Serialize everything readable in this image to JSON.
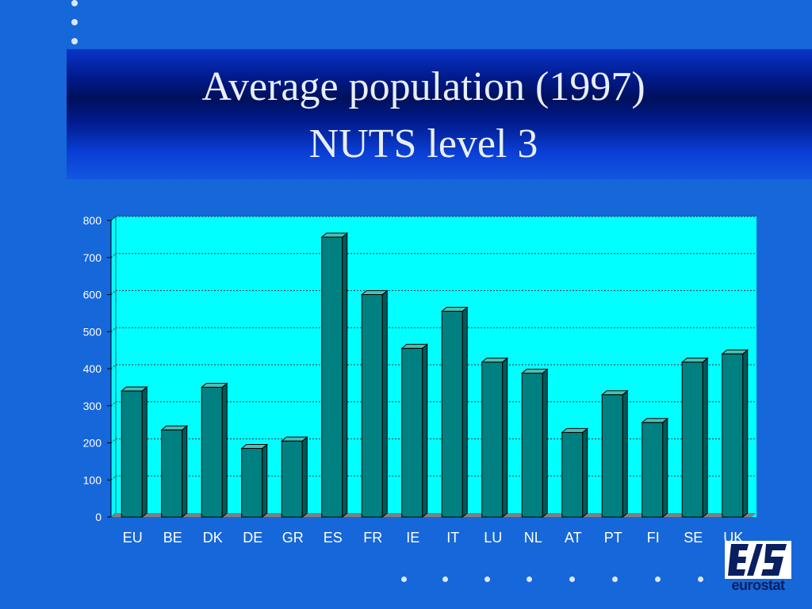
{
  "title": {
    "line1": "Average population (1997)",
    "line2": "NUTS level 3"
  },
  "chart_data": {
    "type": "bar",
    "title": "Average population (1997) NUTS level 3",
    "categories": [
      "EU",
      "BE",
      "DK",
      "DE",
      "GR",
      "ES",
      "FR",
      "IE",
      "IT",
      "LU",
      "NL",
      "AT",
      "PT",
      "FI",
      "SE",
      "UK"
    ],
    "values": [
      340,
      235,
      350,
      185,
      205,
      755,
      600,
      455,
      555,
      418,
      388,
      228,
      330,
      255,
      418,
      440
    ],
    "ylim": [
      0,
      800
    ],
    "yticks": [
      0,
      100,
      200,
      300,
      400,
      500,
      600,
      700,
      800
    ],
    "grid": true,
    "legend": "none",
    "colors": {
      "plot_background": "#00ffff",
      "bar_front": "#008080",
      "bar_top": "#4dbfb3",
      "bar_side": "#005a5a",
      "tick_text": "#ffffff",
      "floor": "#808080"
    }
  },
  "logo": {
    "text": "eurostat",
    "icon": "eurostat-logo-icon"
  }
}
